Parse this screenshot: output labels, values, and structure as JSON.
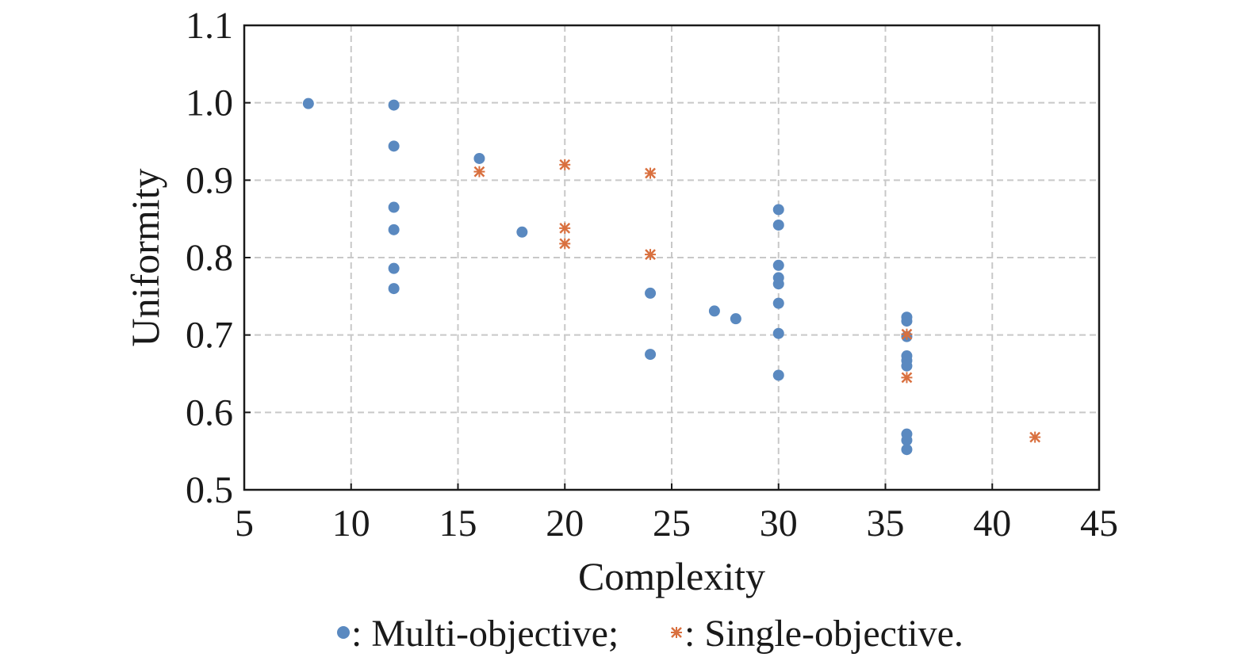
{
  "chart_data": {
    "type": "scatter",
    "title": "",
    "xlabel": "Complexity",
    "ylabel": "Uniformity",
    "xlim": [
      5,
      45
    ],
    "ylim": [
      0.5,
      1.1
    ],
    "xticks": [
      "5",
      "10",
      "15",
      "20",
      "25",
      "30",
      "35",
      "40",
      "45"
    ],
    "yticks": [
      "0.5",
      "0.6",
      "0.7",
      "0.8",
      "0.9",
      "1.0",
      "1.1"
    ],
    "grid": true,
    "legend": {
      "placement": "bottom",
      "text": ": Multi-objective; ",
      "text2": ": Single-objective."
    },
    "colors": {
      "multi": "#5a89c0",
      "single": "#d9703f"
    },
    "series": [
      {
        "name": "Multi-objective",
        "marker": "circle",
        "points": [
          [
            8,
            0.999
          ],
          [
            12,
            0.997
          ],
          [
            12,
            0.944
          ],
          [
            12,
            0.865
          ],
          [
            12,
            0.836
          ],
          [
            12,
            0.786
          ],
          [
            12,
            0.76
          ],
          [
            16,
            0.928
          ],
          [
            18,
            0.833
          ],
          [
            24,
            0.754
          ],
          [
            24,
            0.675
          ],
          [
            27,
            0.731
          ],
          [
            28,
            0.721
          ],
          [
            30,
            0.862
          ],
          [
            30,
            0.842
          ],
          [
            30,
            0.79
          ],
          [
            30,
            0.774
          ],
          [
            30,
            0.766
          ],
          [
            30,
            0.741
          ],
          [
            30,
            0.702
          ],
          [
            30,
            0.648
          ],
          [
            36,
            0.723
          ],
          [
            36,
            0.718
          ],
          [
            36,
            0.698
          ],
          [
            36,
            0.673
          ],
          [
            36,
            0.667
          ],
          [
            36,
            0.66
          ],
          [
            36,
            0.572
          ],
          [
            36,
            0.564
          ],
          [
            36,
            0.552
          ]
        ]
      },
      {
        "name": "Single-objective",
        "marker": "star",
        "points": [
          [
            16,
            0.911
          ],
          [
            20,
            0.92
          ],
          [
            20,
            0.838
          ],
          [
            20,
            0.818
          ],
          [
            24,
            0.909
          ],
          [
            24,
            0.804
          ],
          [
            36,
            0.701
          ],
          [
            36,
            0.645
          ],
          [
            42,
            0.568
          ]
        ]
      }
    ]
  }
}
